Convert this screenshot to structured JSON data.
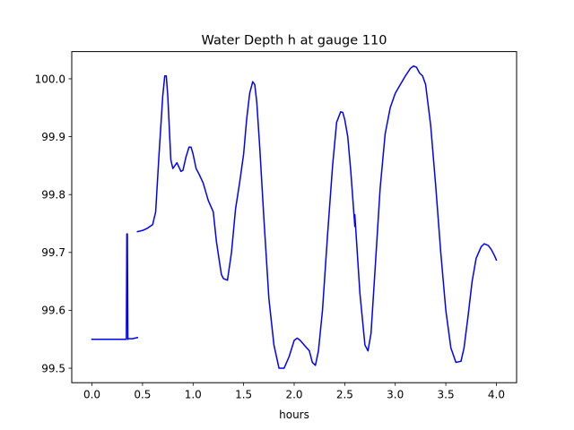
{
  "chart_data": {
    "type": "line",
    "title": "Water Depth h at gauge 110",
    "xlabel": "hours",
    "ylabel": "",
    "xlim": [
      -0.2,
      4.2
    ],
    "ylim": [
      99.475,
      100.047
    ],
    "xticks": [
      0.0,
      0.5,
      1.0,
      1.5,
      2.0,
      2.5,
      3.0,
      3.5,
      4.0
    ],
    "xtick_labels": [
      "0.0",
      "0.5",
      "1.0",
      "1.5",
      "2.0",
      "2.5",
      "3.0",
      "3.5",
      "4.0"
    ],
    "yticks": [
      99.5,
      99.6,
      99.7,
      99.8,
      99.9,
      100.0
    ],
    "ytick_labels": [
      "99.5",
      "99.6",
      "99.7",
      "99.8",
      "99.9",
      "100.0"
    ],
    "grid": false,
    "legend": "none",
    "series": [
      {
        "color": "#0000ff",
        "segments": [
          {
            "x": [
              0.0,
              0.1,
              0.2,
              0.3,
              0.34,
              0.345,
              0.35,
              0.355,
              0.36,
              0.4,
              0.45
            ],
            "y": [
              99.55,
              99.55,
              99.55,
              99.55,
              99.55,
              99.732,
              99.732,
              99.55,
              99.551,
              99.551,
              99.553
            ]
          },
          {
            "x": [
              0.45,
              0.5,
              0.55,
              0.6,
              0.63,
              0.66,
              0.7,
              0.72,
              0.735,
              0.75,
              0.78,
              0.8,
              0.84,
              0.88,
              0.9,
              0.93,
              0.96,
              0.98,
              1.0,
              1.03,
              1.06,
              1.1,
              1.15,
              1.2,
              1.23,
              1.26,
              1.28,
              1.3,
              1.34,
              1.38,
              1.42,
              1.46,
              1.5,
              1.53,
              1.56,
              1.59,
              1.61,
              1.63,
              1.66,
              1.7,
              1.75,
              1.8,
              1.85,
              1.9,
              1.95,
              2.0,
              2.03,
              2.06,
              2.1,
              2.15,
              2.18,
              2.21,
              2.24,
              2.28,
              2.33,
              2.38,
              2.42,
              2.46,
              2.48,
              2.5,
              2.53,
              2.56,
              2.6
            ],
            "y": [
              99.736,
              99.738,
              99.742,
              99.748,
              99.77,
              99.86,
              99.97,
              100.005,
              100.005,
              99.97,
              99.86,
              99.845,
              99.855,
              99.84,
              99.842,
              99.865,
              99.882,
              99.882,
              99.87,
              99.845,
              99.835,
              99.82,
              99.79,
              99.77,
              99.72,
              99.685,
              99.662,
              99.655,
              99.652,
              99.7,
              99.775,
              99.82,
              99.87,
              99.93,
              99.975,
              99.995,
              99.99,
              99.96,
              99.88,
              99.76,
              99.62,
              99.54,
              99.5,
              99.5,
              99.52,
              99.548,
              99.552,
              99.548,
              99.54,
              99.53,
              99.51,
              99.505,
              99.53,
              99.6,
              99.73,
              99.85,
              99.925,
              99.943,
              99.942,
              99.93,
              99.9,
              99.84,
              99.745
            ]
          },
          {
            "x": [
              2.6,
              2.65,
              2.7,
              2.73,
              2.76,
              2.8,
              2.85,
              2.9,
              2.95,
              3.0,
              3.05,
              3.1,
              3.15,
              3.18,
              3.21,
              3.24,
              3.27,
              3.3,
              3.35,
              3.4,
              3.45,
              3.5,
              3.55,
              3.6,
              3.65,
              3.68,
              3.72,
              3.76,
              3.8,
              3.85,
              3.88,
              3.92,
              3.95,
              3.98,
              4.0
            ],
            "y": [
              99.765,
              99.63,
              99.54,
              99.53,
              99.56,
              99.67,
              99.81,
              99.905,
              99.95,
              99.975,
              99.99,
              100.005,
              100.018,
              100.022,
              100.02,
              100.01,
              100.005,
              99.99,
              99.92,
              99.815,
              99.7,
              99.6,
              99.535,
              99.51,
              99.512,
              99.535,
              99.59,
              99.65,
              99.69,
              99.71,
              99.715,
              99.712,
              99.705,
              99.695,
              99.687
            ]
          }
        ]
      }
    ]
  }
}
